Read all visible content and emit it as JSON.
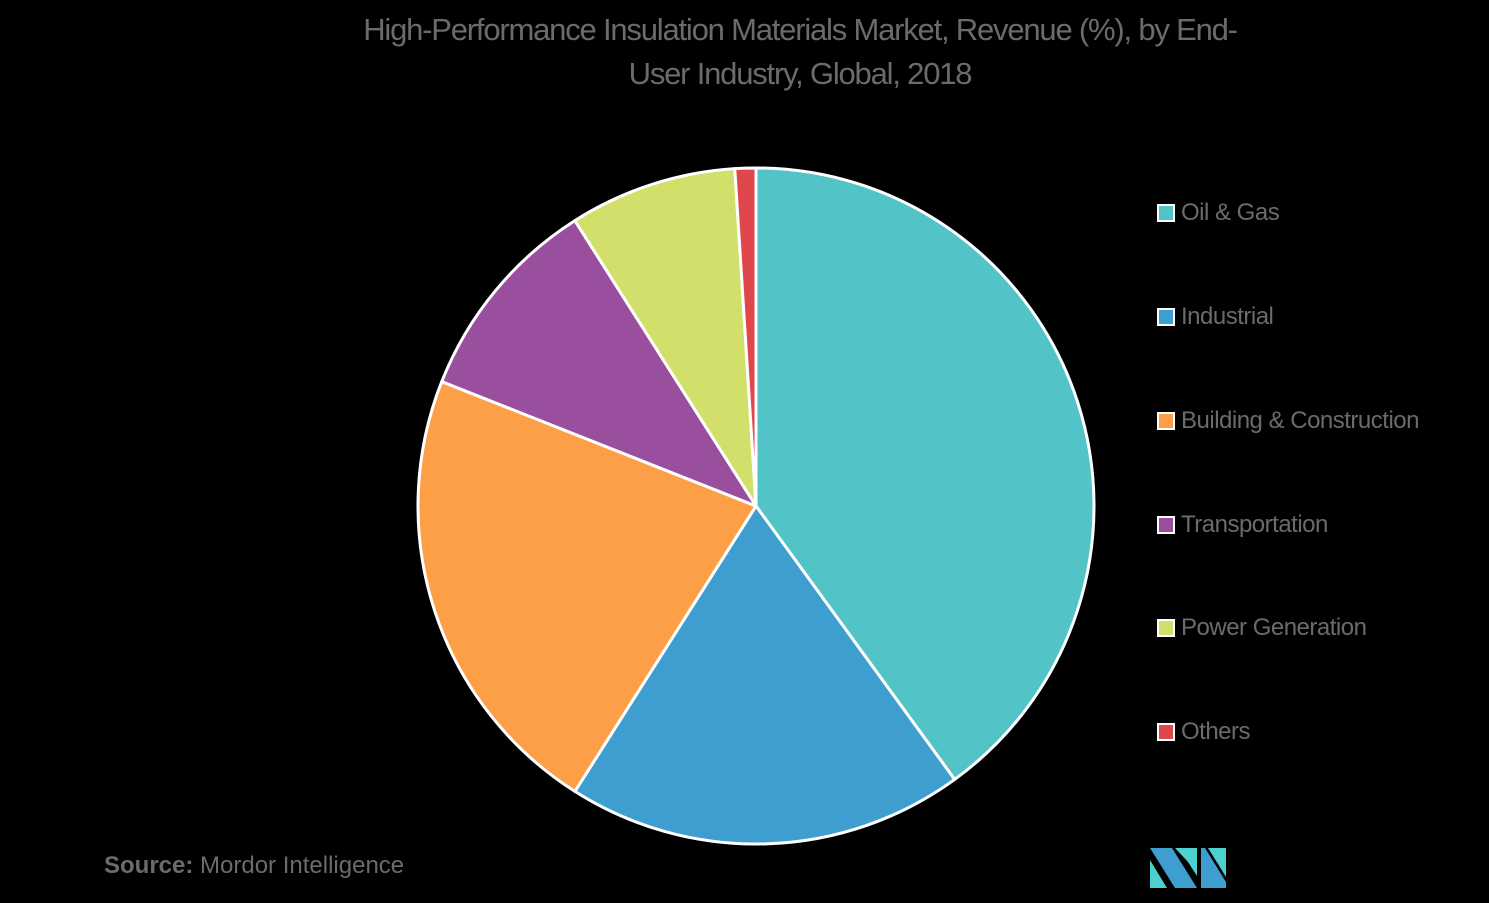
{
  "chart_data": {
    "type": "pie",
    "title": "High-Performance Insulation Materials Market, Revenue (%), by End-User Industry, Global, 2018",
    "title_lines": [
      "High-Performance Insulation Materials Market, Revenue (%), by End-",
      "User Industry, Global, 2018"
    ],
    "categories": [
      "Oil & Gas",
      "Industrial",
      "Building & Construction",
      "Transportation",
      "Power Generation",
      "Others"
    ],
    "values": [
      40,
      19,
      22,
      10,
      8,
      1
    ],
    "colors": [
      "#52c3c6",
      "#3e9ecf",
      "#fd9f47",
      "#9a4f9e",
      "#d2df6b",
      "#e0474c"
    ],
    "unit": "%",
    "legend_position": "right",
    "start_angle_deg": 0,
    "direction": "clockwise"
  },
  "source": {
    "label": "Source:",
    "text": "Mordor Intelligence"
  },
  "logo": {
    "name": "mordor-intelligence-logo",
    "colors": [
      "#3e9ecf",
      "#4ecfd0"
    ]
  }
}
